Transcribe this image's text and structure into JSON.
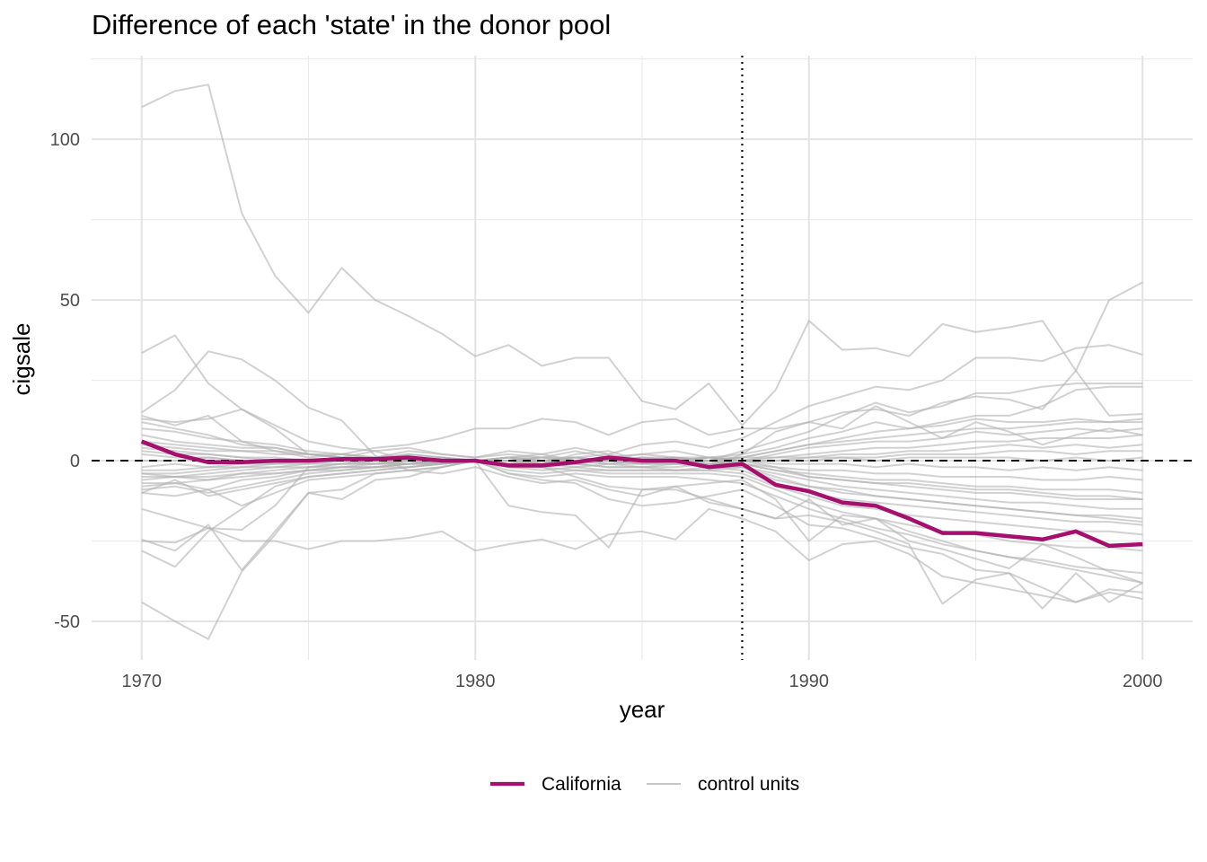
{
  "chart_data": {
    "type": "line",
    "title": "Difference of each 'state' in the donor pool",
    "xlabel": "year",
    "ylabel": "cigsale",
    "xlim": [
      1968.5,
      2001.5
    ],
    "ylim": [
      -62,
      126
    ],
    "x_ticks": [
      1970,
      1980,
      1990,
      2000
    ],
    "x_tick_labels": [
      "1970",
      "1980",
      "1990",
      "2000"
    ],
    "y_ticks": [
      -50,
      0,
      50,
      100
    ],
    "y_tick_labels": [
      "-50",
      "0",
      "50",
      "100"
    ],
    "grid": true,
    "legend_position": "bottom",
    "treatment_year": 1988,
    "reference_y": 0,
    "x": [
      1970,
      1971,
      1972,
      1973,
      1974,
      1975,
      1976,
      1977,
      1978,
      1979,
      1980,
      1981,
      1982,
      1983,
      1984,
      1985,
      1986,
      1987,
      1988,
      1989,
      1990,
      1991,
      1992,
      1993,
      1994,
      1995,
      1996,
      1997,
      1998,
      1999,
      2000
    ],
    "treated": {
      "name": "California",
      "color": "#a50f6e",
      "values": [
        6,
        2,
        -0.5,
        -0.5,
        0,
        0,
        0.5,
        0.5,
        1,
        0,
        0,
        -1.5,
        -1.5,
        -0.5,
        1,
        0,
        0,
        -2,
        -1,
        -7.5,
        -9.5,
        -13,
        -14,
        -18,
        -22.5,
        -22.5,
        -23.5,
        -24.5,
        -22,
        -26.5,
        -26
      ]
    },
    "controls_name": "control units",
    "controls_color": "#b3b3b3",
    "controls": [
      [
        110,
        115,
        117,
        77,
        57.5,
        46,
        60,
        50,
        45,
        39.5,
        32.5,
        36,
        29.5,
        32,
        32,
        18.5,
        16,
        24,
        11,
        22,
        43.5,
        34.5,
        35,
        32.5,
        42.5,
        40,
        41.5,
        43.5,
        28,
        14,
        14.5
      ],
      [
        33.5,
        39,
        24,
        16,
        10,
        2,
        1,
        3,
        0,
        -1,
        0,
        1,
        -1,
        2,
        3,
        0,
        1,
        -2,
        2,
        9,
        12,
        10,
        17,
        12,
        7,
        12,
        9,
        5,
        8,
        10,
        8
      ],
      [
        15,
        22,
        34,
        31.5,
        25,
        16.5,
        12.5,
        1.5,
        -3,
        -4,
        -2,
        -5,
        -7,
        -6,
        -9,
        -11,
        -8,
        -13,
        -15,
        -18,
        -12,
        -20,
        -18,
        -25,
        -27.5,
        -30.5,
        -33.5,
        -26,
        -30,
        -34.5,
        -38
      ],
      [
        13,
        12,
        13,
        16,
        11,
        6,
        4,
        3,
        4,
        2,
        1,
        3,
        2,
        4,
        2,
        5,
        6,
        4,
        7,
        12,
        17,
        20,
        23,
        22,
        25,
        32,
        32,
        31,
        35,
        36,
        33
      ],
      [
        12,
        10,
        8,
        5,
        4,
        2,
        1,
        0,
        2,
        1,
        0,
        1,
        2,
        0,
        1,
        2,
        1,
        0,
        3,
        6,
        9,
        14,
        18,
        15,
        17,
        21,
        21,
        23,
        24,
        24,
        24
      ],
      [
        10,
        9,
        7,
        6,
        5,
        3,
        2,
        1,
        3,
        2,
        1,
        2,
        1,
        3,
        1,
        2,
        3,
        1,
        2,
        4,
        7,
        9,
        12,
        10,
        12,
        14,
        14,
        17,
        22,
        23,
        23
      ],
      [
        8,
        6,
        5,
        4,
        4,
        2,
        1,
        1,
        2,
        1,
        0,
        1,
        0,
        1,
        2,
        0,
        1,
        0,
        1,
        3,
        5,
        7,
        9,
        10,
        11,
        13,
        12,
        12,
        13,
        12,
        12
      ],
      [
        5,
        4,
        3,
        3,
        2,
        2,
        1,
        1,
        1,
        0,
        0,
        1,
        0,
        1,
        0,
        1,
        0,
        1,
        0,
        2,
        4,
        5,
        6,
        6,
        7,
        9,
        8,
        9,
        10,
        9,
        10
      ],
      [
        3,
        2,
        2,
        1,
        1,
        0,
        1,
        0,
        0,
        1,
        0,
        0,
        1,
        0,
        0,
        1,
        0,
        0,
        1,
        1,
        2,
        3,
        4,
        4,
        5,
        6,
        6,
        7,
        7,
        7,
        8
      ],
      [
        4,
        3,
        2,
        1,
        0,
        0,
        0,
        1,
        0,
        0,
        0,
        0,
        1,
        0,
        1,
        0,
        0,
        1,
        0,
        1,
        1,
        2,
        2,
        3,
        3,
        4,
        5,
        4,
        5,
        4,
        5
      ],
      [
        2,
        1,
        1,
        0,
        0,
        0,
        0,
        0,
        1,
        0,
        0,
        1,
        0,
        0,
        1,
        0,
        1,
        0,
        0,
        0,
        1,
        1,
        1,
        2,
        2,
        2,
        3,
        3,
        2,
        3,
        3
      ],
      [
        0,
        0,
        1,
        0,
        0,
        0,
        0,
        0,
        0,
        1,
        0,
        0,
        0,
        1,
        0,
        0,
        0,
        1,
        0,
        0,
        0,
        1,
        0,
        1,
        1,
        1,
        1,
        0,
        1,
        0,
        1
      ],
      [
        -2,
        -1,
        -2,
        -1,
        -1,
        0,
        0,
        0,
        0,
        0,
        0,
        0,
        -1,
        0,
        0,
        -1,
        0,
        0,
        0,
        -1,
        -1,
        -1,
        -2,
        -1,
        -2,
        -2,
        -3,
        -2,
        -3,
        -2,
        -3
      ],
      [
        -3,
        -3,
        -2,
        -2,
        -1,
        -1,
        0,
        -1,
        0,
        0,
        0,
        -1,
        0,
        0,
        -1,
        0,
        0,
        -1,
        0,
        -2,
        -3,
        -3,
        -4,
        -4,
        -5,
        -5,
        -5,
        -6,
        -6,
        -5,
        -6
      ],
      [
        -4,
        -4,
        -3,
        -2,
        -2,
        -1,
        -1,
        0,
        -1,
        0,
        0,
        0,
        -1,
        0,
        0,
        -1,
        -1,
        0,
        -1,
        -3,
        -4,
        -5,
        -6,
        -6,
        -7,
        -8,
        -8,
        -9,
        -9,
        -9,
        -10
      ],
      [
        -5,
        -5,
        -4,
        -3,
        -2,
        -2,
        -1,
        -1,
        0,
        -1,
        0,
        -1,
        0,
        -1,
        0,
        -1,
        0,
        -1,
        -1,
        -3,
        -5,
        -6,
        -7,
        -8,
        -9,
        -10,
        -10,
        -11,
        -12,
        -12,
        -12
      ],
      [
        -6,
        -5,
        -5,
        -4,
        -3,
        -2,
        -2,
        -1,
        -1,
        0,
        0,
        -1,
        -1,
        0,
        -1,
        -1,
        -1,
        0,
        -2,
        -4,
        -6,
        -8,
        -9,
        -10,
        -11,
        -12,
        -13,
        -13,
        -14,
        -15,
        -15
      ],
      [
        -7,
        -7,
        -6,
        -5,
        -4,
        -3,
        -2,
        -2,
        -1,
        -1,
        0,
        -1,
        -1,
        -1,
        -2,
        -2,
        -1,
        -2,
        -2,
        -5,
        -8,
        -10,
        -11,
        -12,
        -13,
        -14,
        -15,
        -16,
        -17,
        -17,
        -18
      ],
      [
        -8,
        -7,
        -9,
        -6,
        -5,
        -3,
        -3,
        -2,
        -1,
        -1,
        0,
        -2,
        -2,
        -1,
        -2,
        -2,
        -3,
        -2,
        -3,
        -7,
        -10,
        -12,
        -13,
        -14,
        -15,
        -16,
        -17,
        -18,
        -19,
        -19,
        -20
      ],
      [
        -9,
        -8,
        -10,
        -8,
        -6,
        -4,
        -3,
        -2,
        -2,
        -1,
        0,
        -2,
        -3,
        -2,
        -3,
        -3,
        -3,
        -3,
        -4,
        -8,
        -11,
        -14,
        -15,
        -17,
        -18,
        -19,
        -20,
        -21,
        -22,
        -22,
        -23
      ],
      [
        -10,
        -6,
        -11,
        -9,
        -7,
        -5,
        -4,
        -3,
        -2,
        -1,
        0,
        -3,
        -4,
        -3,
        -4,
        -4,
        -4,
        -4,
        -5,
        -9,
        -13,
        -16,
        -18,
        -20,
        -22,
        -23,
        -25,
        -26,
        -27,
        -27,
        -28
      ],
      [
        -10,
        -11,
        -9,
        -14,
        -10,
        -6,
        -5,
        -4,
        -3,
        -2,
        0,
        -4,
        -5,
        -4,
        -5,
        -5,
        -5,
        -6,
        -7,
        -11,
        -15,
        -18,
        -21,
        -23,
        -26,
        -28,
        -30,
        -31,
        -33,
        -34,
        -35
      ],
      [
        -25,
        -25.5,
        -21,
        -25,
        -25,
        -27.5,
        -25,
        -25,
        -24,
        -22,
        -28,
        -26,
        -24.5,
        -27.5,
        -23,
        -22,
        -24.5,
        -15,
        -18,
        -22,
        -31,
        -26,
        -25,
        -29,
        -36,
        -38,
        -40,
        -42,
        -44,
        -40,
        -41
      ],
      [
        -28,
        -33,
        -22,
        -15,
        -8,
        -5,
        -4,
        -3,
        -2,
        -1,
        0,
        -4,
        -6,
        -7,
        -12,
        -14,
        -13,
        -11,
        -9,
        -14,
        -20,
        -21,
        -24,
        -27,
        -29,
        -34,
        -35,
        -39.5,
        -44,
        -41,
        -43
      ],
      [
        -24.5,
        -28,
        -20,
        -34,
        -22,
        -10,
        -12,
        -6,
        -5,
        -2,
        0,
        -14,
        -16,
        -17,
        -27,
        -9,
        -9,
        -12,
        -15,
        -18,
        -17,
        -19,
        -22,
        -26,
        -44.5,
        -37,
        -35,
        -46,
        -35,
        -44,
        -38
      ],
      [
        -44,
        -50,
        -55.5,
        -34.5,
        -23,
        -10,
        -9,
        -4,
        -3,
        -2,
        0,
        -2,
        -2,
        -5,
        -8,
        -9,
        -8,
        -7,
        -6,
        -12,
        -25,
        -17,
        -18,
        -22,
        -25,
        -28,
        -30,
        -32,
        -34,
        -36,
        -38
      ],
      [
        -15,
        -18,
        -21,
        -21.5,
        -14,
        -2,
        -1,
        -1,
        -1,
        0,
        0,
        -2,
        -2,
        -3,
        -3,
        -3,
        -3,
        -3,
        -2,
        -6,
        -8,
        -9,
        -11,
        -12,
        -13,
        -14,
        -15,
        -16,
        -17,
        -18,
        -19
      ],
      [
        14,
        11,
        14,
        6,
        3,
        1,
        2,
        4,
        5,
        7,
        10,
        10,
        13,
        12,
        8,
        12,
        13,
        8,
        10,
        10,
        12,
        15,
        16,
        14,
        18,
        20,
        19,
        16,
        28,
        50,
        55.5
      ],
      [
        -4,
        -5,
        -6,
        -4,
        -4,
        -3,
        -2,
        -2,
        -1,
        -1,
        0,
        -2,
        -1,
        -2,
        -1,
        -2,
        -2,
        -1,
        -1,
        -2,
        -5,
        -6,
        -7,
        -7,
        -8,
        -9,
        -9,
        -10,
        -11,
        -11,
        -12
      ],
      [
        6,
        5,
        4,
        3,
        3,
        2,
        2,
        1,
        1,
        0,
        0,
        1,
        1,
        1,
        0,
        1,
        1,
        1,
        1,
        3,
        5,
        6,
        7,
        8,
        9,
        10,
        10,
        11,
        12,
        12,
        13
      ]
    ]
  }
}
